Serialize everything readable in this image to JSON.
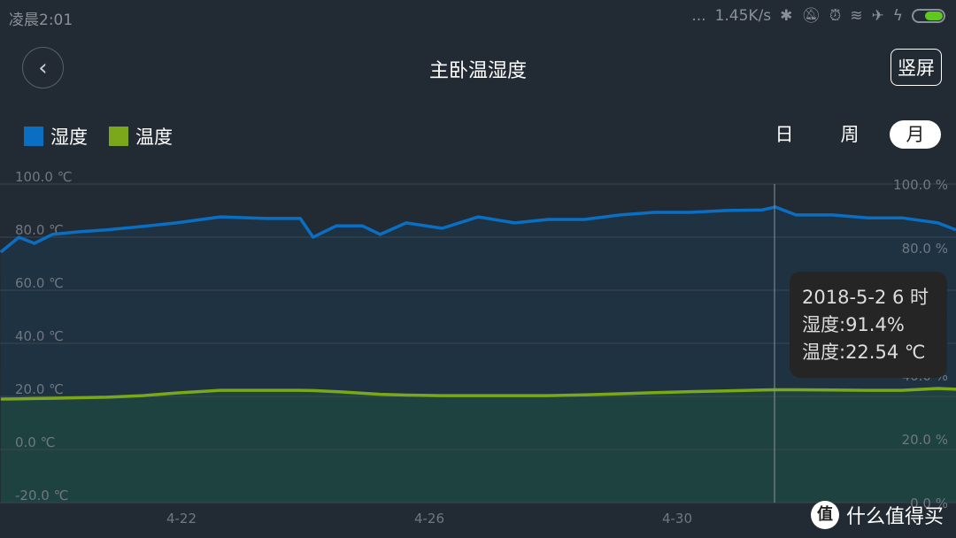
{
  "status_bar": {
    "time": "凌晨2:01",
    "dots": "...",
    "net_speed": "1.45K/s",
    "icons": [
      "bluetooth-icon",
      "mute-icon",
      "alarm-icon",
      "wifi-icon",
      "airplane-icon",
      "charging-icon",
      "battery-icon"
    ]
  },
  "header": {
    "title": "主卧温湿度",
    "rotate_label": "竖屏",
    "back_icon": "chevron-left-icon"
  },
  "legend": [
    {
      "label": "湿度",
      "color": "#0a6fc2"
    },
    {
      "label": "温度",
      "color": "#7aa81a"
    }
  ],
  "tabs": [
    {
      "label": "日",
      "active": false
    },
    {
      "label": "周",
      "active": false
    },
    {
      "label": "月",
      "active": true
    }
  ],
  "tooltip": {
    "time": "2018-5-2 6 时",
    "humidity": "湿度:91.4%",
    "temperature": "温度:22.54 ℃"
  },
  "watermark": {
    "badge": "值",
    "text": "什么值得买"
  },
  "chart_data": {
    "type": "line",
    "x_ticks": [
      "4-22",
      "4-26",
      "4-30"
    ],
    "left_axis": {
      "unit": "℃",
      "ylim": [
        -20,
        100
      ],
      "ticks": [
        "100.0 ℃",
        "80.0 ℃",
        "60.0 ℃",
        "40.0 ℃",
        "20.0 ℃",
        "0.0 ℃",
        "-20.0 ℃"
      ]
    },
    "right_axis": {
      "unit": "%",
      "ylim": [
        0,
        100
      ],
      "ticks": [
        "100.0 %",
        "80.0 %",
        "60.0 %",
        "40.0 %",
        "20.0 %",
        "0.0 %"
      ]
    },
    "grid": true,
    "x": [
      "2018-04-19T02",
      "2018-04-19T09",
      "2018-04-19T15",
      "2018-04-19T22",
      "2018-04-20T08",
      "2018-04-20T19",
      "2018-04-21T09",
      "2018-04-21T22",
      "2018-04-22T15",
      "2018-04-23T09",
      "2018-04-23T22",
      "2018-04-24T03",
      "2018-04-24T12",
      "2018-04-24T22",
      "2018-04-25T05",
      "2018-04-25T15",
      "2018-04-26T05",
      "2018-04-26T19",
      "2018-04-27T09",
      "2018-04-27T22",
      "2018-04-28T12",
      "2018-04-29T02",
      "2018-04-29T15",
      "2018-04-30T05",
      "2018-04-30T19",
      "2018-05-01T09",
      "2018-05-01T14",
      "2018-05-01T22",
      "2018-05-02T12",
      "2018-05-03T02",
      "2018-05-03T15",
      "2018-05-04T05",
      "2018-05-04T12"
    ],
    "series": [
      {
        "name": "湿度",
        "axis": "right",
        "color": "#0a6fc2",
        "values": [
          78.6,
          83.3,
          81.4,
          84.2,
          85.0,
          85.6,
          86.7,
          87.8,
          89.7,
          89.2,
          89.2,
          83.3,
          86.9,
          86.9,
          84.2,
          87.8,
          86.1,
          89.7,
          87.8,
          88.9,
          88.9,
          90.3,
          91.1,
          91.1,
          91.7,
          91.9,
          92.8,
          90.3,
          90.3,
          89.4,
          89.4,
          87.8,
          85.6
        ]
      },
      {
        "name": "温度",
        "axis": "left",
        "color": "#7aa81a",
        "values": [
          19.0,
          19.1,
          19.2,
          19.3,
          19.5,
          19.7,
          20.3,
          21.3,
          22.3,
          22.3,
          22.3,
          22.2,
          21.8,
          21.2,
          20.8,
          20.5,
          20.3,
          20.3,
          20.3,
          20.3,
          20.6,
          21.0,
          21.4,
          21.8,
          22.1,
          22.4,
          22.5,
          22.5,
          22.4,
          22.3,
          22.3,
          23.0,
          22.7
        ]
      }
    ]
  }
}
